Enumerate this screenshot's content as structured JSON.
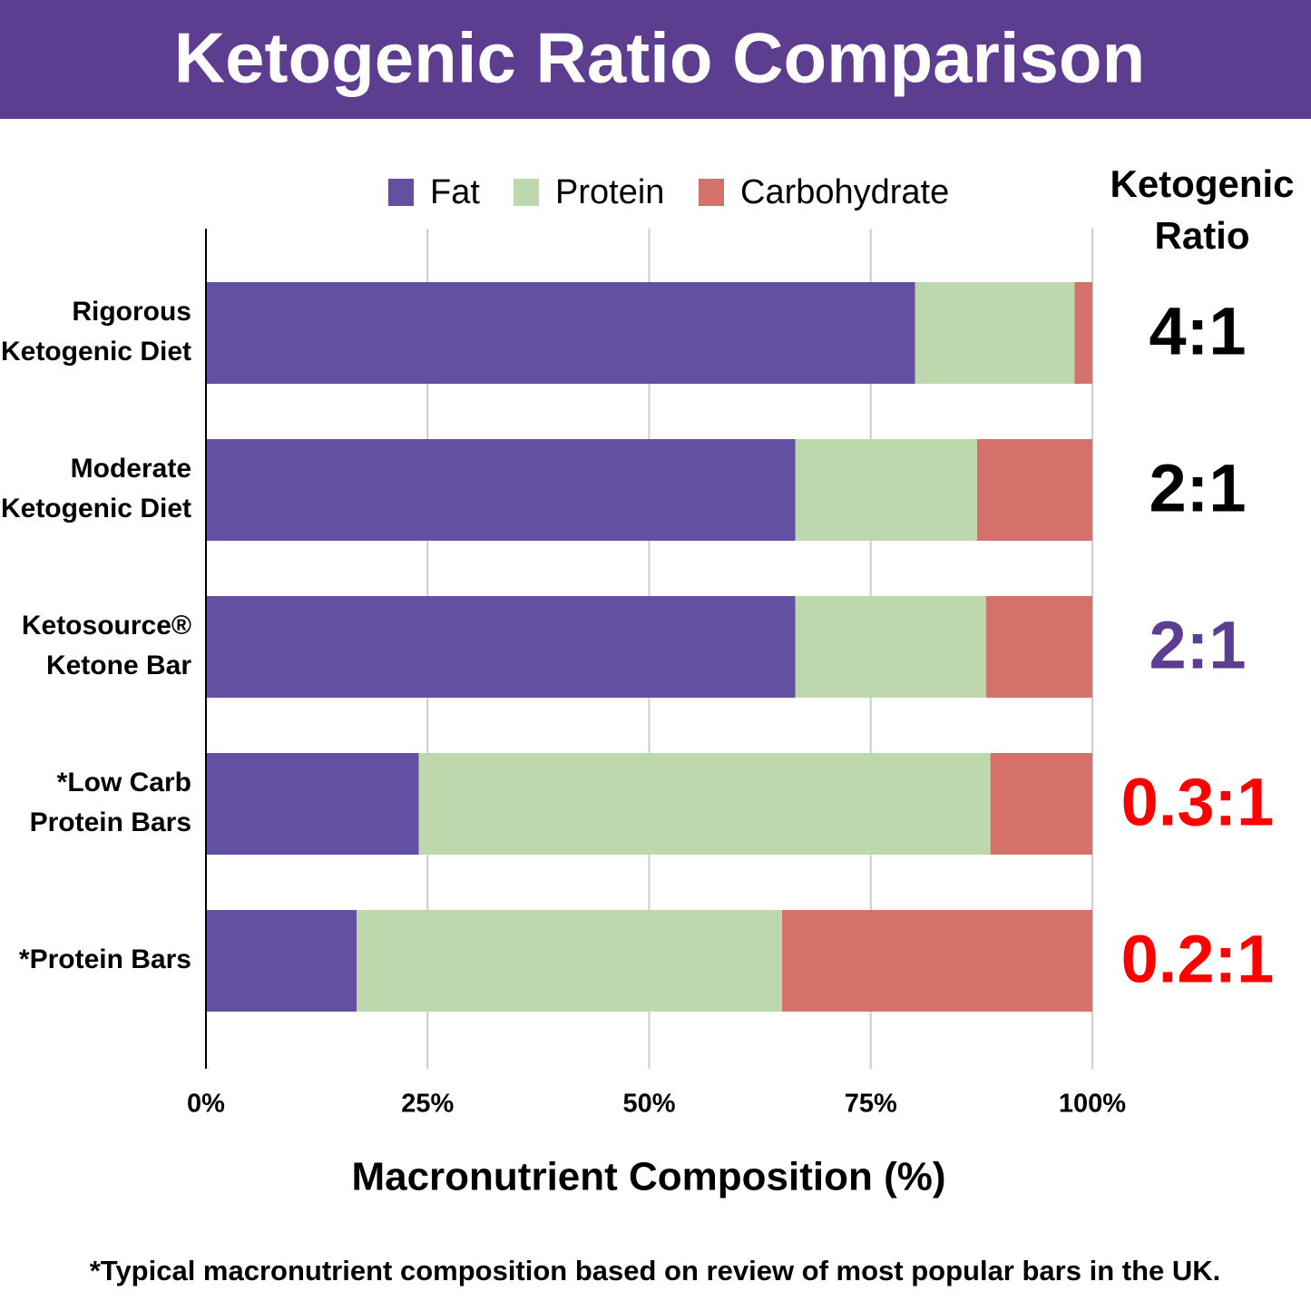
{
  "chart_data": {
    "type": "stacked-bar-horizontal",
    "title": "Ketogenic Ratio Comparison",
    "x_label": "Macronutrient Composition (%)",
    "footnote": "*Typical macronutrient composition based on review of most popular bars in the UK.",
    "categories": [
      [
        "Rigorous",
        "Ketogenic Diet"
      ],
      [
        "Moderate",
        "Ketogenic Diet"
      ],
      [
        "Ketosource®",
        "Ketone Bar"
      ],
      [
        "*Low Carb",
        "Protein Bars"
      ],
      [
        "*Protein Bars"
      ]
    ],
    "series": [
      {
        "name": "Fat",
        "color": "#6450a3",
        "values": [
          80,
          66.5,
          66.5,
          24,
          17
        ]
      },
      {
        "name": "Protein",
        "color": "#bed8ad",
        "values": [
          18,
          20.5,
          21.5,
          64.5,
          48
        ]
      },
      {
        "name": "Carbohydrate",
        "color": "#d4716a",
        "values": [
          2,
          13,
          12,
          11.5,
          35
        ]
      }
    ],
    "xlim": [
      0,
      100
    ],
    "xticks": [
      {
        "value": 0,
        "label": "0%"
      },
      {
        "value": 25,
        "label": "25%"
      },
      {
        "value": 50,
        "label": "50%"
      },
      {
        "value": 75,
        "label": "75%"
      },
      {
        "value": 100,
        "label": "100%"
      }
    ],
    "grid": true,
    "legend": "top",
    "ratio_title": [
      "Ketogenic",
      "Ratio"
    ],
    "ratios": [
      {
        "label": "4:1",
        "color": "#000000"
      },
      {
        "label": "2:1",
        "color": "#000000"
      },
      {
        "label": "2:1",
        "color": "#5c3d8f"
      },
      {
        "label": "0.3:1",
        "color": "#ff0000"
      },
      {
        "label": "0.2:1",
        "color": "#ff0000"
      }
    ]
  }
}
